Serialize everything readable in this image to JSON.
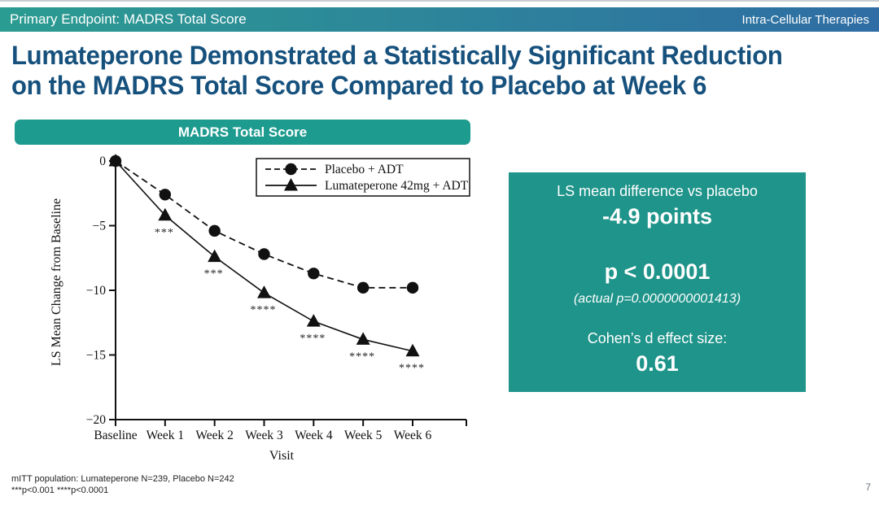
{
  "header": {
    "left": "Primary Endpoint: MADRS Total Score",
    "right": "Intra-Cellular Therapies"
  },
  "title": {
    "line1": "Lumateperone Demonstrated a Statistically Significant Reduction",
    "line2": "on the MADRS Total Score Compared to Placebo at Week 6"
  },
  "chart_banner": "MADRS Total Score",
  "chart_data": {
    "type": "line",
    "title": "MADRS Total Score",
    "categories": [
      "Baseline",
      "Week 1",
      "Week 2",
      "Week 3",
      "Week 4",
      "Week 5",
      "Week 6"
    ],
    "series": [
      {
        "name": "Placebo + ADT",
        "marker": "circle",
        "line": "dashed",
        "values": [
          0,
          -2.6,
          -5.4,
          -7.2,
          -8.7,
          -9.8,
          -9.8
        ]
      },
      {
        "name": "Lumateperone 42mg + ADT",
        "marker": "triangle",
        "line": "solid",
        "values": [
          0,
          -4.2,
          -7.4,
          -10.2,
          -12.4,
          -13.8,
          -14.7
        ]
      }
    ],
    "significance": [
      "",
      "***",
      "***",
      "****",
      "****",
      "****",
      "****"
    ],
    "xlabel": "Visit",
    "ylabel": "LS Mean Change from Baseline",
    "ylim": [
      -20,
      0
    ],
    "yticks": [
      0,
      -5,
      -10,
      -15,
      -20
    ],
    "legend_position": "top-right",
    "grid": false
  },
  "results_panel": {
    "difference_label": "LS mean difference vs placebo",
    "difference_value": "-4.9 points",
    "p_value": "p < 0.0001",
    "actual_p": "(actual p=0.0000000001413)",
    "cohens_label": "Cohen’s d effect size:",
    "cohens_value": "0.61"
  },
  "footnotes": {
    "line1": "mITT population: Lumateperone N=239, Placebo N=242",
    "line2": "***p<0.001 ****p<0.0001"
  },
  "page_number": "7",
  "colors": {
    "teal": "#1F948A",
    "banner_teal": "#1E9B8F",
    "header_gradient_left": "#2B9C91",
    "header_gradient_right": "#2F6DA4",
    "title_blue": "#16517D"
  }
}
